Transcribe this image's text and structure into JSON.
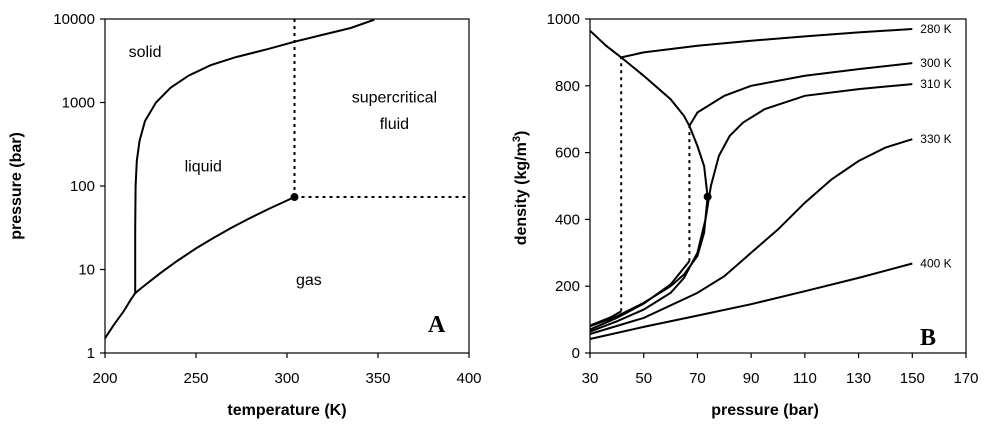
{
  "chart_data": [
    {
      "id": "A",
      "type": "line",
      "panel_label": "A",
      "xlabel": "temperature (K)",
      "ylabel": "pressure (bar)",
      "xlim": [
        200,
        400
      ],
      "ylim": [
        1,
        10000
      ],
      "yscale": "log",
      "xticks": [
        200,
        250,
        300,
        350,
        400
      ],
      "yticks": [
        1,
        10,
        100,
        1000,
        10000
      ],
      "grid": false,
      "series": [
        {
          "role": "sublimation-curve",
          "x": [
            200,
            205,
            210,
            214,
            216.6
          ],
          "y": [
            1.5,
            2.2,
            3.1,
            4.3,
            5.2
          ]
        },
        {
          "role": "melting-curve",
          "x": [
            216.6,
            216.6,
            216.8,
            217.5,
            219,
            222,
            228,
            236,
            246,
            258,
            272,
            290,
            305,
            320,
            335,
            348
          ],
          "y": [
            5.2,
            30,
            100,
            200,
            350,
            600,
            1000,
            1500,
            2100,
            2800,
            3500,
            4400,
            5400,
            6500,
            7800,
            9800
          ]
        },
        {
          "role": "vaporization-curve",
          "x": [
            216.6,
            220,
            230,
            240,
            250,
            260,
            270,
            280,
            290,
            300,
            304.1
          ],
          "y": [
            5.2,
            6,
            8.9,
            12.8,
            17.9,
            24.2,
            32,
            41.6,
            53.2,
            67.1,
            73.8
          ]
        }
      ],
      "critical_point": {
        "x": 304.1,
        "y": 73.8
      },
      "boundaries": [
        {
          "role": "critical-temperature-line",
          "x": [
            304.1,
            304.1
          ],
          "y": [
            73.8,
            10000
          ]
        },
        {
          "role": "critical-pressure-line",
          "x": [
            304.1,
            400
          ],
          "y": [
            73.8,
            73.8
          ]
        }
      ],
      "annotations": [
        {
          "text": "solid",
          "x": 222,
          "y": 3500
        },
        {
          "text": "liquid",
          "x": 254,
          "y": 150
        },
        {
          "text": "supercritical",
          "x": 359,
          "y": 1000
        },
        {
          "text": "fluid",
          "x": 359,
          "y": 480
        },
        {
          "text": "gas",
          "x": 312,
          "y": 6.5
        }
      ]
    },
    {
      "id": "B",
      "type": "line",
      "panel_label": "B",
      "xlabel": "pressure (bar)",
      "ylabel_base": "density (kg/m",
      "ylabel_sup": "3",
      "ylabel_end": ")",
      "xlim": [
        30,
        170
      ],
      "ylim": [
        0,
        1000
      ],
      "xticks": [
        30,
        50,
        70,
        90,
        110,
        130,
        150,
        170
      ],
      "yticks": [
        0,
        200,
        400,
        600,
        800,
        1000
      ],
      "grid": false,
      "series": [
        {
          "name": "280 K",
          "segments": [
            {
              "x": [
                30,
                34,
                38,
                41.6
              ],
              "y": [
                82,
                95,
                108,
                125
              ]
            },
            {
              "x": [
                41.6,
                50,
                70,
                90,
                110,
                130,
                150
              ],
              "y": [
                885,
                900,
                920,
                935,
                948,
                960,
                970
              ]
            }
          ]
        },
        {
          "name": "300 K",
          "segments": [
            {
              "x": [
                30,
                40,
                50,
                60,
                67
              ],
              "y": [
                70,
                105,
                148,
                205,
                275
              ]
            },
            {
              "x": [
                67,
                70,
                80,
                90,
                110,
                130,
                150
              ],
              "y": [
                680,
                720,
                770,
                800,
                830,
                850,
                868
              ]
            }
          ]
        },
        {
          "name": "310 K",
          "segments": [
            {
              "x": [
                30,
                40,
                50,
                60,
                65,
                70,
                73,
                75,
                78,
                82,
                87,
                95,
                110,
                130,
                150
              ],
              "y": [
                64,
                95,
                130,
                180,
                225,
                300,
                400,
                500,
                590,
                650,
                690,
                730,
                770,
                790,
                805
              ]
            }
          ]
        },
        {
          "name": "330 K",
          "segments": [
            {
              "x": [
                30,
                50,
                70,
                80,
                90,
                100,
                110,
                120,
                130,
                140,
                150
              ],
              "y": [
                57,
                105,
                180,
                230,
                300,
                370,
                450,
                520,
                575,
                615,
                640
              ]
            }
          ]
        },
        {
          "name": "400 K",
          "segments": [
            {
              "x": [
                30,
                50,
                70,
                90,
                110,
                130,
                150
              ],
              "y": [
                42,
                78,
                112,
                146,
                185,
                225,
                268
              ]
            }
          ]
        }
      ],
      "saturation_dome": {
        "liquid": {
          "x": [
            30,
            36,
            41.6,
            50,
            60,
            65,
            67,
            70,
            72.5,
            73.8
          ],
          "y": [
            965,
            920,
            885,
            830,
            760,
            710,
            680,
            620,
            560,
            468
          ]
        },
        "vapor": {
          "x": [
            30,
            40,
            50,
            60,
            65,
            70,
            72.5,
            73.8
          ],
          "y": [
            80,
            110,
            150,
            200,
            235,
            290,
            360,
            468
          ]
        }
      },
      "critical_point": {
        "x": 73.8,
        "y": 468
      },
      "tie_lines": [
        {
          "x": [
            41.6,
            41.6
          ],
          "y": [
            125,
            885
          ]
        },
        {
          "x": [
            67,
            67
          ],
          "y": [
            275,
            680
          ]
        }
      ]
    }
  ]
}
